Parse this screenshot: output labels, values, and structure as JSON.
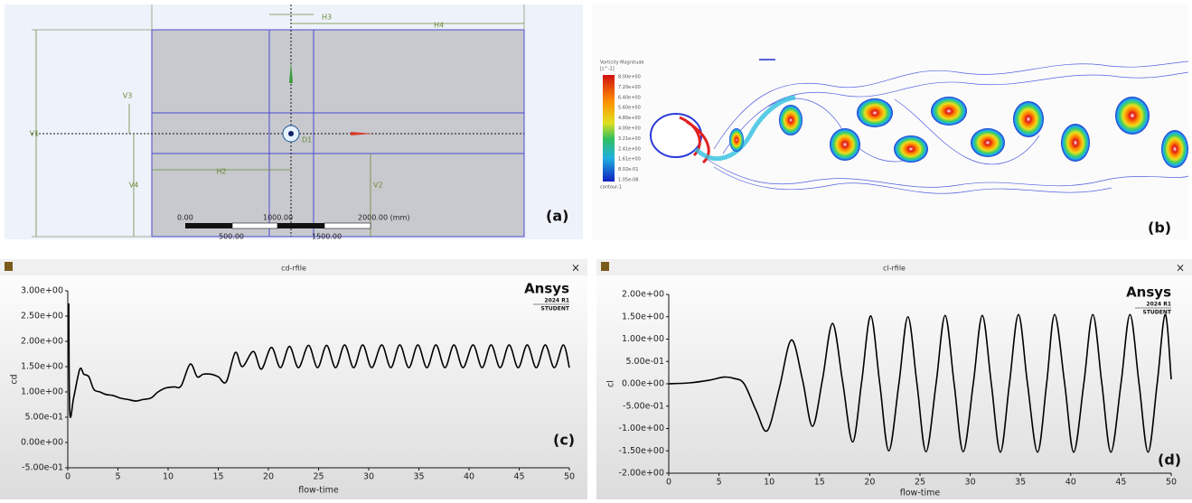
{
  "panel_labels": [
    "(a)",
    "(b)",
    "(c)",
    "(d)"
  ],
  "panel_a": {
    "dimensions": [
      "H3",
      "H4",
      "V3",
      "V1",
      "D1",
      "H2",
      "V4",
      "V2"
    ],
    "scale_bar": [
      "0.00",
      "1000.00",
      "2000.00 (mm)",
      "500.00",
      "1500.00"
    ]
  },
  "panel_b": {
    "legend_title": "Vorticity Magnitude",
    "legend_unit": "[s^-1]",
    "legend_values": [
      "8.00e+00",
      "7.20e+00",
      "6.40e+00",
      "5.60e+00",
      "4.80e+00",
      "4.00e+00",
      "3.21e+00",
      "2.41e+00",
      "1.61e+00",
      "8.02e-01",
      "1.05e-08"
    ],
    "legend_footer": "contour-1"
  },
  "watermark": {
    "brand": "Ansys",
    "release": "2024 R1",
    "edition": "STUDENT"
  },
  "chart_data": [
    {
      "type": "line",
      "title": "cd-rfile",
      "x_label": "flow-time",
      "y_label": "cd",
      "color": "#000000",
      "x": [
        0.1,
        0.2,
        0.6,
        1.2,
        1.6,
        2.1,
        2.6,
        3.2,
        3.8,
        4.5,
        5.2,
        6,
        6.8,
        7.5,
        8.3,
        9,
        9.8,
        10.6,
        11.3,
        12.2,
        12.9,
        13.5,
        14.3,
        15,
        15.8,
        16.7,
        17.4,
        18.5,
        19.3,
        20.3,
        21.2,
        22.1,
        23,
        24,
        24.9,
        25.8,
        26.7,
        27.6,
        28.5,
        29.4,
        30.3,
        31.3,
        32.2,
        33.1,
        34,
        34.9,
        35.8,
        36.7,
        37.6,
        38.5,
        39.4,
        40.4,
        41.3,
        42.2,
        43.1,
        44,
        44.9,
        45.8,
        46.7,
        47.6,
        48.5,
        49.4,
        50
      ],
      "values": [
        2.75,
        0.6,
        0.9,
        1.45,
        1.35,
        1.3,
        1.05,
        1.0,
        0.95,
        0.93,
        0.88,
        0.85,
        0.82,
        0.85,
        0.88,
        1.0,
        1.08,
        1.1,
        1.12,
        1.55,
        1.3,
        1.35,
        1.35,
        1.3,
        1.2,
        1.78,
        1.5,
        1.8,
        1.45,
        1.88,
        1.48,
        1.9,
        1.48,
        1.92,
        1.48,
        1.92,
        1.48,
        1.93,
        1.48,
        1.93,
        1.48,
        1.93,
        1.48,
        1.93,
        1.48,
        1.93,
        1.48,
        1.93,
        1.48,
        1.93,
        1.48,
        1.93,
        1.48,
        1.93,
        1.48,
        1.93,
        1.48,
        1.93,
        1.48,
        1.93,
        1.48,
        1.93,
        1.48
      ],
      "xlim": [
        0,
        50
      ],
      "xticks": [
        0,
        5,
        10,
        15,
        20,
        25,
        30,
        35,
        40,
        45,
        50
      ],
      "ylim": [
        -0.5,
        3.0
      ],
      "yticks": [
        {
          "value": 3.0,
          "label": "3.00e+00"
        },
        {
          "value": 2.5,
          "label": "2.50e+00"
        },
        {
          "value": 2.0,
          "label": "2.00e+00"
        },
        {
          "value": 1.5,
          "label": "1.50e+00"
        },
        {
          "value": 1.0,
          "label": "1.00e+00"
        },
        {
          "value": 0.5,
          "label": "5.00e-01"
        },
        {
          "value": 0,
          "label": "0.00e+00"
        },
        {
          "value": -0.5,
          "label": "-5.00e-01"
        }
      ]
    },
    {
      "type": "line",
      "title": "cl-rfile",
      "x_label": "flow-time",
      "y_label": "cl",
      "color": "#000000",
      "x": [
        0,
        2,
        4,
        5.5,
        6.5,
        7.5,
        8.7,
        9.8,
        11,
        12.2,
        13.3,
        14.3,
        15.3,
        16.3,
        17.3,
        18.3,
        19.2,
        20.1,
        21,
        21.9,
        22.9,
        23.8,
        24.7,
        25.6,
        26.6,
        27.5,
        28.4,
        29.3,
        30.3,
        31.2,
        32.1,
        33,
        33.9,
        34.8,
        35.7,
        36.7,
        37.6,
        38.4,
        39.4,
        40.3,
        41.3,
        42.2,
        43.1,
        44,
        45,
        45.9,
        46.8,
        47.7,
        48.6,
        49.4,
        50
      ],
      "values": [
        0,
        0.02,
        0.08,
        0.15,
        0.12,
        0,
        -0.6,
        -1.05,
        -0.1,
        0.98,
        0.1,
        -0.95,
        0.1,
        1.35,
        0.05,
        -1.3,
        0.05,
        1.52,
        0,
        -1.5,
        0,
        1.5,
        0,
        -1.52,
        0,
        1.53,
        0,
        -1.52,
        0,
        1.53,
        0,
        -1.53,
        0,
        1.55,
        0,
        -1.53,
        0,
        1.55,
        0,
        -1.53,
        0,
        1.55,
        0,
        -1.53,
        0,
        1.55,
        0,
        -1.53,
        0,
        1.55,
        0.1
      ],
      "xlim": [
        0,
        50
      ],
      "xticks": [
        0,
        5,
        10,
        15,
        20,
        25,
        30,
        35,
        40,
        45,
        50
      ],
      "ylim": [
        -2.0,
        2.0
      ],
      "yticks": [
        {
          "value": 2.0,
          "label": "2.00e+00"
        },
        {
          "value": 1.5,
          "label": "1.50e+00"
        },
        {
          "value": 1.0,
          "label": "1.00e+00"
        },
        {
          "value": 0.5,
          "label": "5.00e-01"
        },
        {
          "value": 0,
          "label": "0.00e+00"
        },
        {
          "value": -0.5,
          "label": "-5.00e-01"
        },
        {
          "value": -1.0,
          "label": "-1.00e+00"
        },
        {
          "value": -1.5,
          "label": "-1.50e+00"
        },
        {
          "value": -2.0,
          "label": "-2.00e+00"
        }
      ]
    }
  ]
}
